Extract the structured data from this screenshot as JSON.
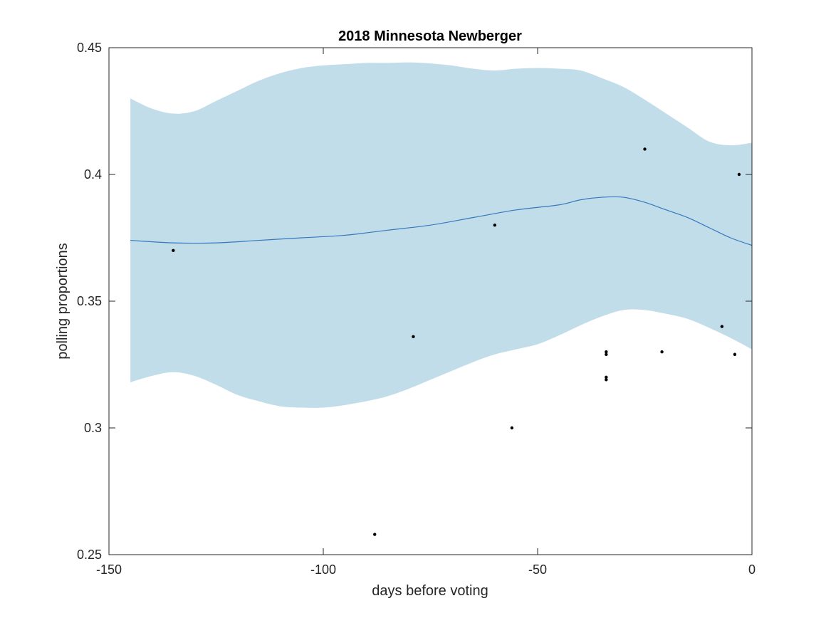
{
  "chart_data": {
    "type": "line",
    "title": "2018 Minnesota Newberger",
    "xlabel": "days before voting",
    "ylabel": "polling proportions",
    "xlim": [
      -150,
      0
    ],
    "ylim": [
      0.25,
      0.45
    ],
    "xticks": [
      -150,
      -100,
      -50,
      0
    ],
    "xtick_labels": [
      "-150",
      "-100",
      "-50",
      "0"
    ],
    "yticks": [
      0.25,
      0.3,
      0.35,
      0.4,
      0.45
    ],
    "ytick_labels": [
      "0.25",
      "0.3",
      "0.35",
      "0.4",
      "0.45"
    ],
    "grid": false,
    "colors": {
      "band": "#c2ddea",
      "trend": "#3478bd",
      "points": "#000000"
    },
    "trend": {
      "x": [
        -145,
        -135,
        -125,
        -115,
        -105,
        -95,
        -85,
        -75,
        -65,
        -55,
        -45,
        -40,
        -35,
        -30,
        -25,
        -20,
        -15,
        -10,
        -5,
        0
      ],
      "y": [
        0.374,
        0.373,
        0.373,
        0.374,
        0.375,
        0.376,
        0.378,
        0.38,
        0.383,
        0.386,
        0.388,
        0.39,
        0.391,
        0.391,
        0.389,
        0.386,
        0.383,
        0.379,
        0.375,
        0.372
      ]
    },
    "band": {
      "x": [
        -145,
        -140,
        -135,
        -130,
        -125,
        -120,
        -115,
        -110,
        -105,
        -100,
        -95,
        -90,
        -85,
        -80,
        -75,
        -70,
        -65,
        -60,
        -55,
        -50,
        -45,
        -40,
        -35,
        -30,
        -25,
        -20,
        -15,
        -10,
        -5,
        0
      ],
      "upper": [
        0.43,
        0.426,
        0.424,
        0.425,
        0.429,
        0.433,
        0.437,
        0.44,
        0.442,
        0.443,
        0.4435,
        0.444,
        0.444,
        0.4442,
        0.4438,
        0.443,
        0.4417,
        0.441,
        0.4417,
        0.442,
        0.4417,
        0.441,
        0.438,
        0.4345,
        0.4295,
        0.424,
        0.4185,
        0.413,
        0.4115,
        0.4125
      ],
      "lower": [
        0.318,
        0.3205,
        0.322,
        0.3205,
        0.317,
        0.313,
        0.3105,
        0.3085,
        0.308,
        0.308,
        0.309,
        0.3105,
        0.3125,
        0.3155,
        0.319,
        0.3225,
        0.326,
        0.329,
        0.331,
        0.333,
        0.3365,
        0.3405,
        0.344,
        0.3465,
        0.3465,
        0.345,
        0.343,
        0.3395,
        0.3355,
        0.331
      ]
    },
    "points": {
      "x": [
        -135,
        -88,
        -79,
        -60,
        -56,
        -34,
        -34,
        -34,
        -34,
        -25,
        -21,
        -7,
        -4,
        -3
      ],
      "y": [
        0.37,
        0.258,
        0.336,
        0.38,
        0.3,
        0.33,
        0.329,
        0.32,
        0.319,
        0.41,
        0.33,
        0.34,
        0.329,
        0.4
      ]
    }
  }
}
